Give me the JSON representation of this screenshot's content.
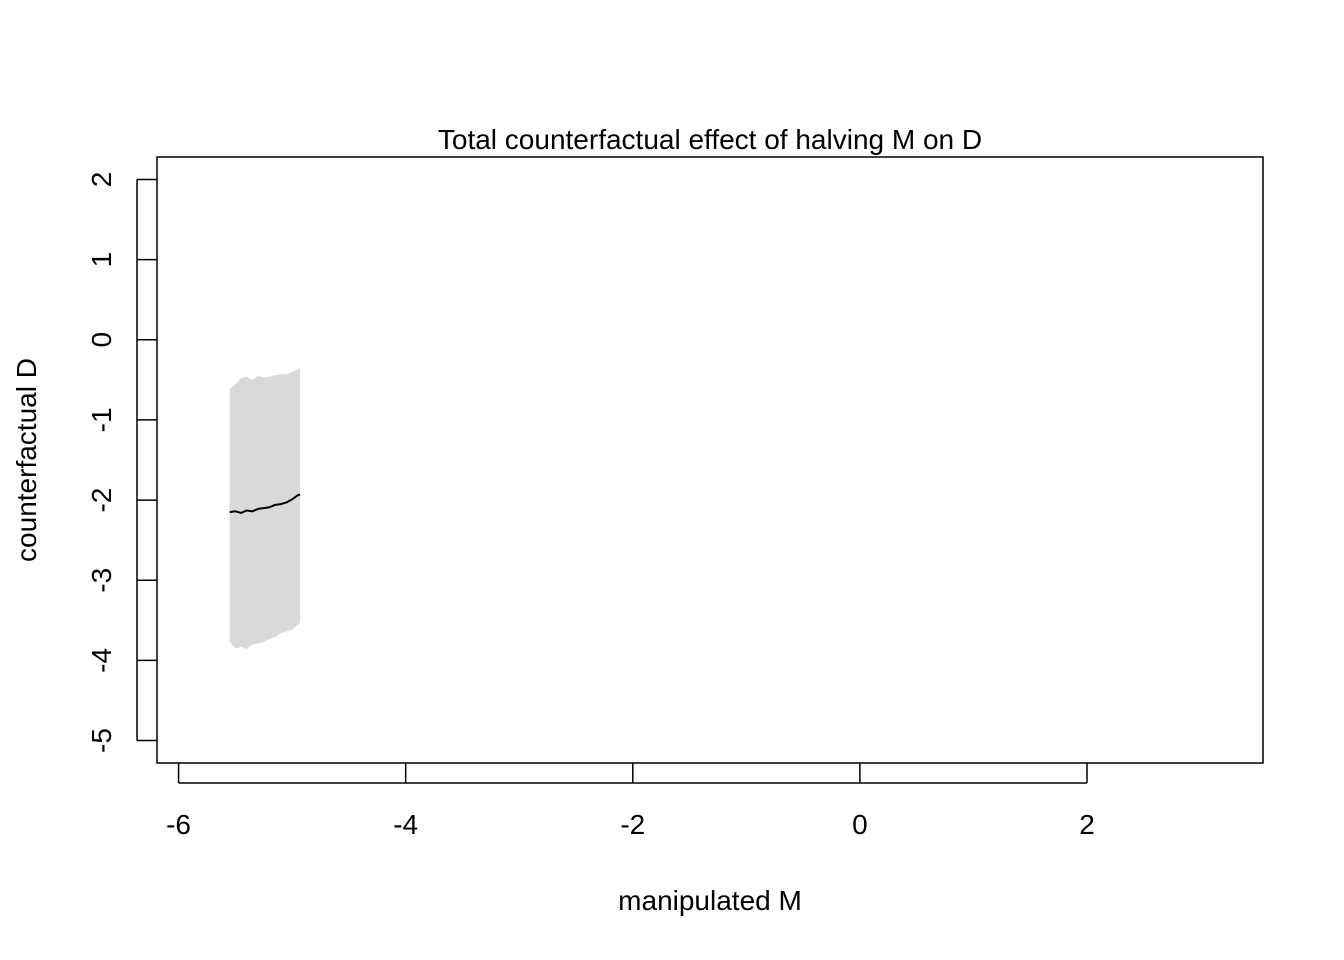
{
  "chart_data": {
    "type": "line",
    "title": "Total counterfactual effect of halving M on D",
    "xlabel": "manipulated M",
    "ylabel": "counterfactual D",
    "xlim": [
      -6.19,
      3.55
    ],
    "ylim": [
      -5.28,
      2.28
    ],
    "x_ticks": [
      -6,
      -4,
      -2,
      0,
      2
    ],
    "x_tick_labels": [
      "-6",
      "-4",
      "-2",
      "0",
      "2"
    ],
    "y_ticks": [
      -5,
      -4,
      -3,
      -2,
      -1,
      0,
      1,
      2
    ],
    "y_tick_labels": [
      "-5",
      "-4",
      "-3",
      "-2",
      "-1",
      "0",
      "1",
      "2"
    ],
    "grid": false,
    "legend": "none",
    "colors": {
      "line": "#000000",
      "interval": "#d9d9d9",
      "axes": "#000000",
      "background": "#ffffff"
    },
    "series": [
      {
        "role": "mean",
        "x": [
          -5.55,
          -5.5,
          -5.45,
          -5.4,
          -5.35,
          -5.3,
          -5.25,
          -5.2,
          -5.15,
          -5.1,
          -5.05,
          -5.0,
          -4.95,
          -4.93
        ],
        "y": [
          -2.15,
          -2.14,
          -2.16,
          -2.13,
          -2.14,
          -2.11,
          -2.1,
          -2.09,
          -2.06,
          -2.05,
          -2.03,
          -1.99,
          -1.94,
          -1.93
        ]
      }
    ],
    "interval": {
      "role": "89% interval",
      "x": [
        -5.55,
        -5.5,
        -5.45,
        -5.4,
        -5.35,
        -5.3,
        -5.25,
        -5.2,
        -5.15,
        -5.1,
        -5.05,
        -5.0,
        -4.95,
        -4.93
      ],
      "lower": [
        -3.77,
        -3.85,
        -3.83,
        -3.86,
        -3.8,
        -3.79,
        -3.77,
        -3.73,
        -3.71,
        -3.66,
        -3.64,
        -3.62,
        -3.55,
        -3.53
      ],
      "upper": [
        -0.62,
        -0.55,
        -0.48,
        -0.46,
        -0.5,
        -0.45,
        -0.47,
        -0.46,
        -0.44,
        -0.43,
        -0.43,
        -0.4,
        -0.37,
        -0.36
      ]
    }
  }
}
